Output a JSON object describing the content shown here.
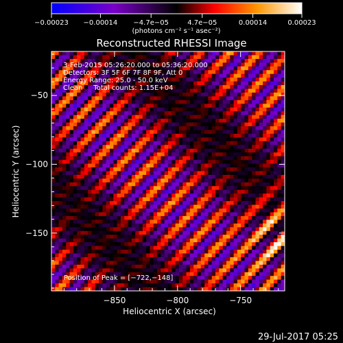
{
  "chart_data": {
    "type": "heatmap",
    "title": "Reconstructed RHESSI Image",
    "xlabel": "Heliocentric X (arcsec)",
    "ylabel": "Heliocentric Y (arcsec)",
    "xlim": [
      -900,
      -715
    ],
    "ylim": [
      -192,
      -18
    ],
    "x_ticks": [
      {
        "value": -850,
        "label": "−850"
      },
      {
        "value": -800,
        "label": "−800"
      },
      {
        "value": -750,
        "label": "−750"
      }
    ],
    "y_ticks": [
      {
        "value": -50,
        "label": "−50"
      },
      {
        "value": -100,
        "label": "−100"
      },
      {
        "value": -150,
        "label": "−150"
      }
    ],
    "colorbar": {
      "min": -0.00023,
      "max": 0.00023,
      "ticks": [
        {
          "value": -0.00023,
          "label": "−0.00023"
        },
        {
          "value": -0.00014,
          "label": "−0.00014"
        },
        {
          "value": -4.7e-05,
          "label": "−4.7e−05"
        },
        {
          "value": 4.7e-05,
          "label": "4.7e−05"
        },
        {
          "value": 0.00014,
          "label": "0.00014"
        },
        {
          "value": 0.00023,
          "label": "0.00023"
        }
      ],
      "unit_label": "(photons cm⁻² s⁻¹ asec⁻²)"
    },
    "annotations": [
      "3-Feb-2015 05:26:20.000 to 05:36:20.000",
      "Detectors: 3F 5F 6F 7F 8F 9F, Att 0",
      "Energy Range: 25.0 - 50.0 keV",
      "Clean     Total counts: 1.15E+04"
    ],
    "peak_label": "Position of Peak = [−722,−148]",
    "peak": {
      "x": -722,
      "y": -148
    },
    "grid_size": [
      64,
      64
    ],
    "colors": [
      "#0000ff",
      "#7a00c8",
      "#000000",
      "#ff0000",
      "#ff9600",
      "#ffffff"
    ]
  },
  "footer": {
    "timestamp": "29-Jul-2017 05:25"
  }
}
